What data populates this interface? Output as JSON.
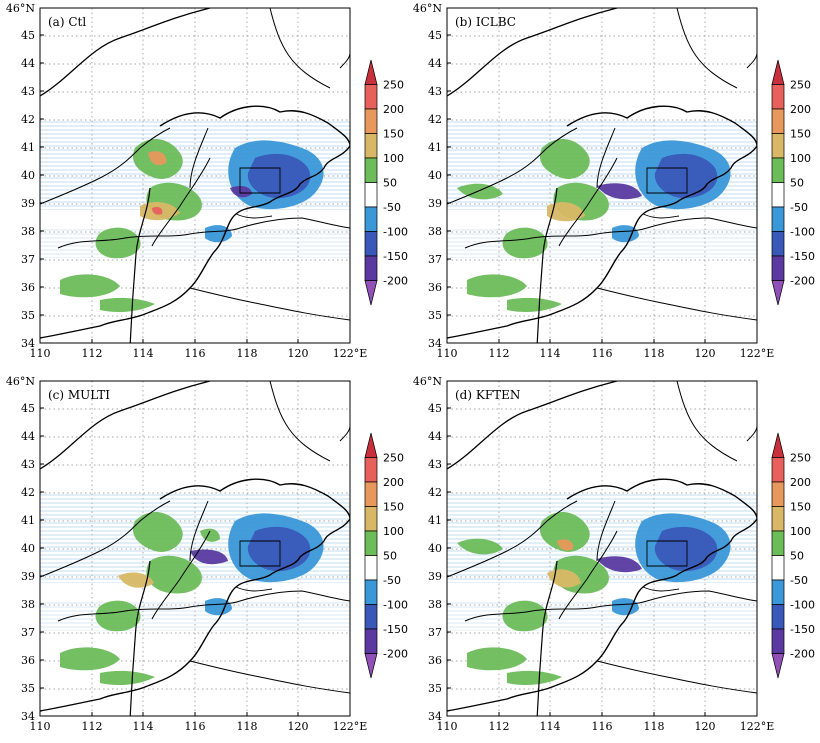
{
  "figure": {
    "panels": [
      {
        "label": "(a) Ctl"
      },
      {
        "label": "(b) ICLBC"
      },
      {
        "label": "(c) MULTI"
      },
      {
        "label": "(d) KFTEN"
      }
    ],
    "x_ticks": [
      "110",
      "112",
      "114",
      "116",
      "118",
      "120",
      "122°E"
    ],
    "y_ticks": [
      "34",
      "35",
      "36",
      "37",
      "38",
      "39",
      "40",
      "41",
      "42",
      "43",
      "44",
      "45",
      "46°N"
    ],
    "colorbar": {
      "levels": [
        "250",
        "200",
        "150",
        "100",
        "50",
        "-50",
        "-100",
        "-150",
        "-200"
      ],
      "colors": [
        "#c8303c",
        "#e8605c",
        "#e8985c",
        "#d8b866",
        "#6cbc5a",
        "#ffffff",
        "#3a98d8",
        "#3a58b8",
        "#5a3aa0",
        "#9050b8"
      ]
    }
  }
}
